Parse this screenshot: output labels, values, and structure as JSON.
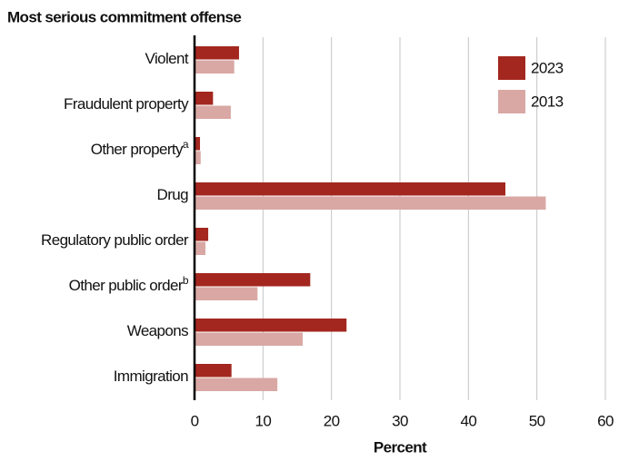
{
  "chart_data": {
    "type": "bar",
    "orientation": "horizontal",
    "title": "Most serious commitment offense",
    "x_label": "Percent",
    "categories": [
      "Violent",
      "Fraudulent property",
      "Other property",
      "Drug",
      "Regulatory public order",
      "Other public order",
      "Weapons",
      "Immigration"
    ],
    "category_notes": [
      null,
      null,
      "a",
      null,
      null,
      "b",
      null,
      null
    ],
    "series": [
      {
        "name": "2023",
        "color": "#a3271f",
        "values": [
          6.5,
          2.7,
          0.8,
          45.4,
          2.0,
          16.9,
          22.2,
          5.4
        ]
      },
      {
        "name": "2013",
        "color": "#d9a8a4",
        "values": [
          5.8,
          5.3,
          0.9,
          51.3,
          1.6,
          9.2,
          15.8,
          12.1
        ]
      }
    ],
    "xlim": [
      0,
      60
    ],
    "xticks": [
      0,
      10,
      20,
      30,
      40,
      50,
      60
    ],
    "grid": true,
    "legend": "top-right"
  }
}
